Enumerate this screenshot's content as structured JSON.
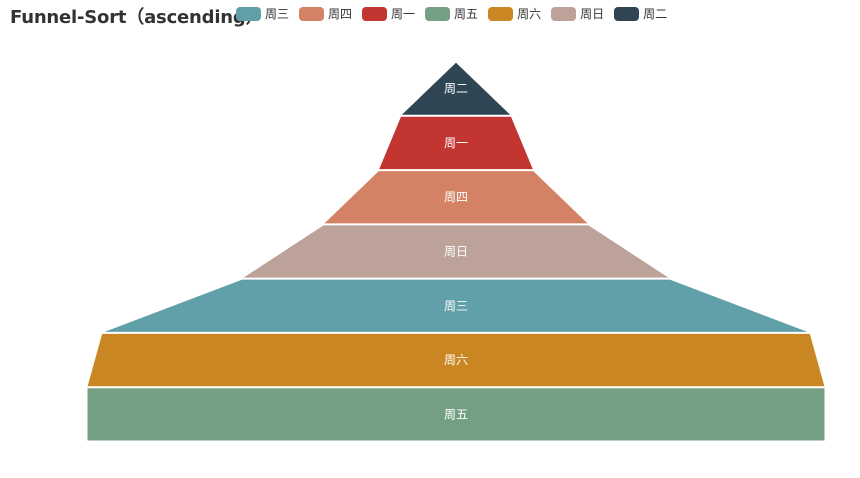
{
  "chart_data": {
    "type": "funnel",
    "title": "Funnel-Sort（ascending）",
    "sort": "ascending",
    "legend_position": "top",
    "categories": [
      "周一",
      "周二",
      "周三",
      "周四",
      "周五",
      "周六",
      "周日"
    ],
    "values": [
      15,
      0,
      58,
      21,
      100,
      96,
      36
    ],
    "colors": {
      "周一": "#c23531",
      "周二": "#2f4554",
      "周三": "#61a0a8",
      "周四": "#d48265",
      "周五": "#749f83",
      "周六": "#ca8622",
      "周日": "#bda29a"
    },
    "legend_order": [
      "周三",
      "周四",
      "周一",
      "周五",
      "周六",
      "周日",
      "周二"
    ]
  }
}
